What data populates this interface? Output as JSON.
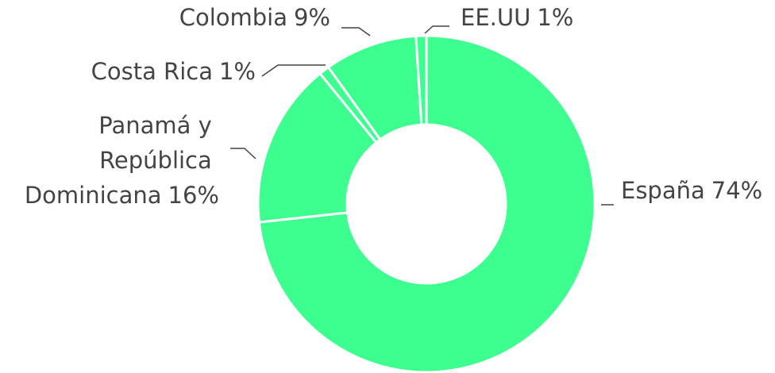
{
  "chart_data": {
    "type": "donut",
    "categories": [
      "España",
      "Panamá y República Dominicana",
      "Costa Rica",
      "Colombia",
      "EE.UU"
    ],
    "values": [
      74,
      16,
      1,
      9,
      1
    ],
    "value_labels": [
      "74%",
      "16%",
      "1%",
      "9%",
      "1%"
    ],
    "color": "#3cff90"
  }
}
